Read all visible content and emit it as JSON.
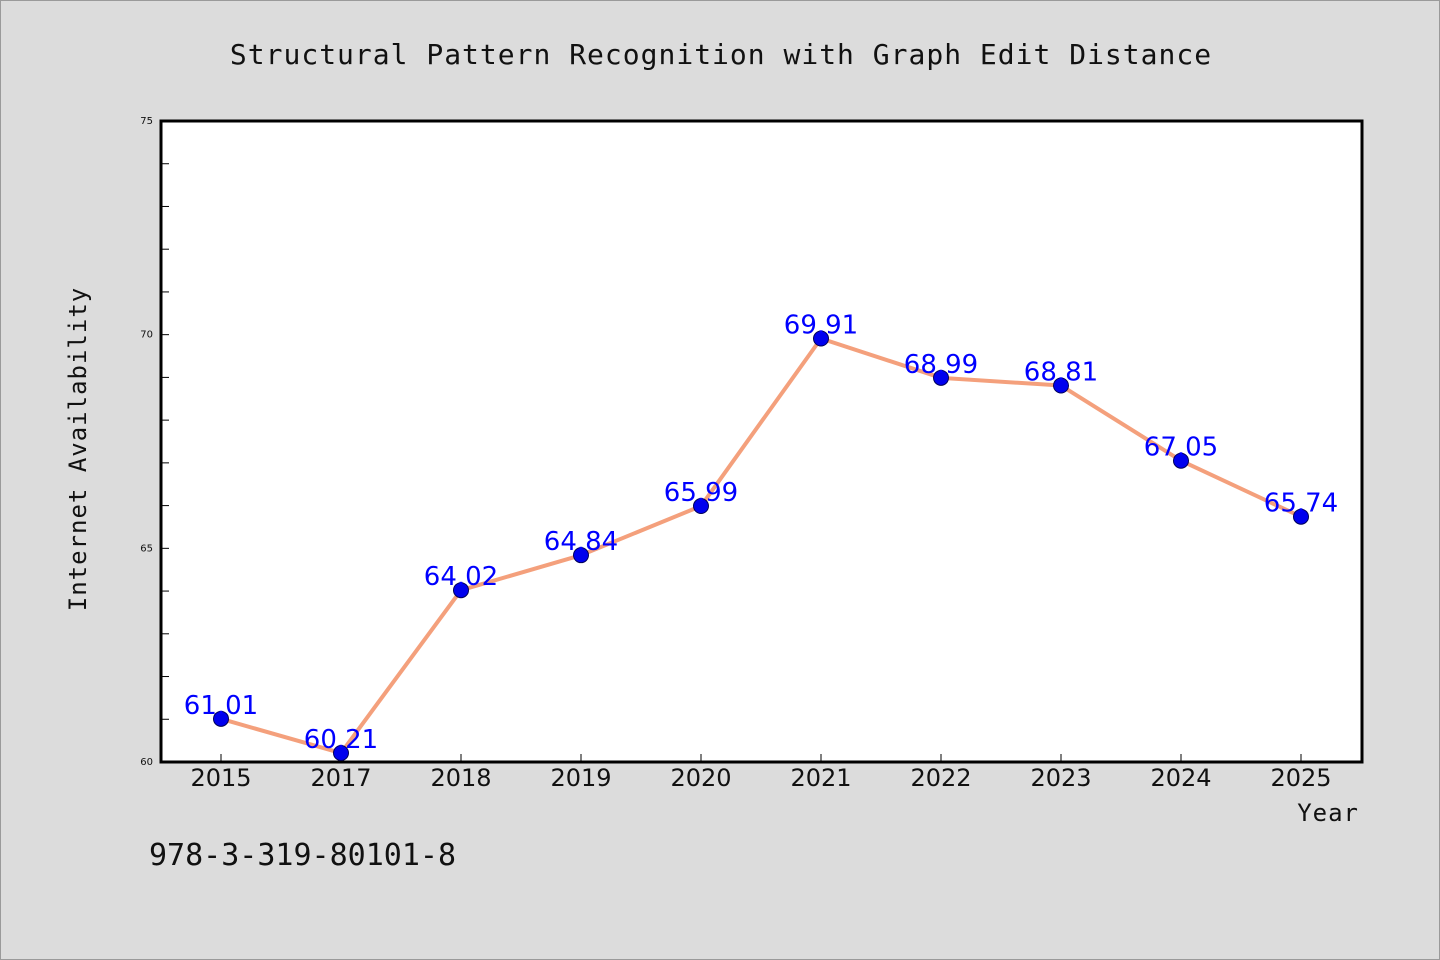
{
  "chart_data": {
    "type": "line",
    "title": "Structural Pattern Recognition with Graph Edit Distance",
    "xlabel": "Year",
    "ylabel": "Internet Availability",
    "categories": [
      "2015",
      "2017",
      "2018",
      "2019",
      "2020",
      "2021",
      "2022",
      "2023",
      "2024",
      "2025"
    ],
    "values": [
      61.01,
      60.21,
      64.02,
      64.84,
      65.99,
      69.91,
      68.99,
      68.81,
      67.05,
      65.74
    ],
    "data_labels": [
      "61.01",
      "60.21",
      "64.02",
      "64.84",
      "65.99",
      "69.91",
      "68.99",
      "68.81",
      "67.05",
      "65.74"
    ],
    "ylim": [
      60,
      75
    ],
    "yticks": [
      60,
      65,
      70,
      75
    ],
    "ytick_labels": [
      "60",
      "65",
      "70",
      "75"
    ],
    "grid": false,
    "line_color": "#f4a07c",
    "marker_color": "#0000ee",
    "label_color": "#0000ff"
  },
  "footer": {
    "isbn": "978-3-319-80101-8"
  }
}
